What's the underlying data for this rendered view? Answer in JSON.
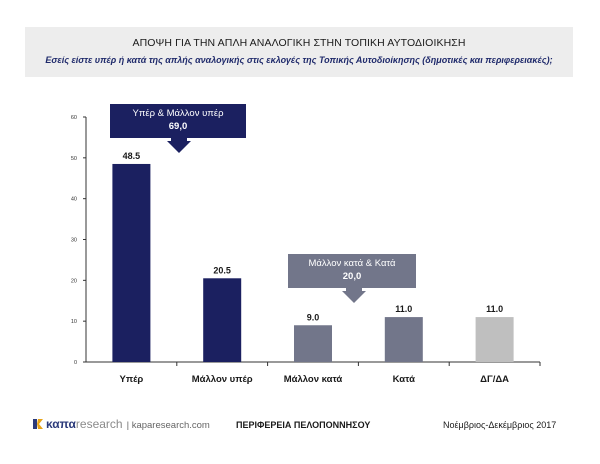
{
  "header": {
    "title": "ΑΠΟΨΗ ΓΙΑ ΤΗΝ ΑΠΛΗ ΑΝΑΛΟΓΙΚΗ ΣΤΗΝ ΤΟΠΙΚΗ ΑΥΤΟΔΙΟΙΚΗΣΗ",
    "subtitle": "Εσείς είστε υπέρ ή κατά της απλής αναλογικής στις εκλογές της Τοπικής Αυτοδιοίκησης (δημοτικές και περιφερειακές);"
  },
  "chart_data": {
    "type": "bar",
    "categories": [
      "Υπέρ",
      "Μάλλον υπέρ",
      "Μάλλον κατά",
      "Κατά",
      "ΔΓ/ΔΑ"
    ],
    "values": [
      48.5,
      20.5,
      9.0,
      11.0,
      11.0
    ],
    "value_labels": [
      "48.5",
      "20.5",
      "9.0",
      "11.0",
      "11.0"
    ],
    "bar_colors": [
      "#1b2060",
      "#1b2060",
      "#72768a",
      "#72768a",
      "#bfbfbf"
    ],
    "ylim": [
      0,
      60
    ],
    "yticks": [
      0,
      10,
      20,
      30,
      40,
      50,
      60
    ],
    "grid": false,
    "annotations": [
      {
        "label": "Υπέρ & Μάλλον υπέρ",
        "value": "69,0",
        "color": "#1b2060"
      },
      {
        "label": "Μάλλον κατά & Κατά",
        "value": "20,0",
        "color": "#72768a"
      }
    ]
  },
  "footer": {
    "logo_kapa": "καπα",
    "logo_research": "research",
    "logo_url": "| kaparesearch.com",
    "region": "ΠΕΡΙΦΕΡΕΙΑ ΠΕΛΟΠΟΝΝΗΣΟΥ",
    "date": "Νοέμβριος-Δεκέμβριος 2017"
  },
  "colors": {
    "dark_navy": "#1b2060",
    "slate": "#72768a",
    "light_gray": "#bfbfbf",
    "subtitle": "#1f2a6b"
  }
}
